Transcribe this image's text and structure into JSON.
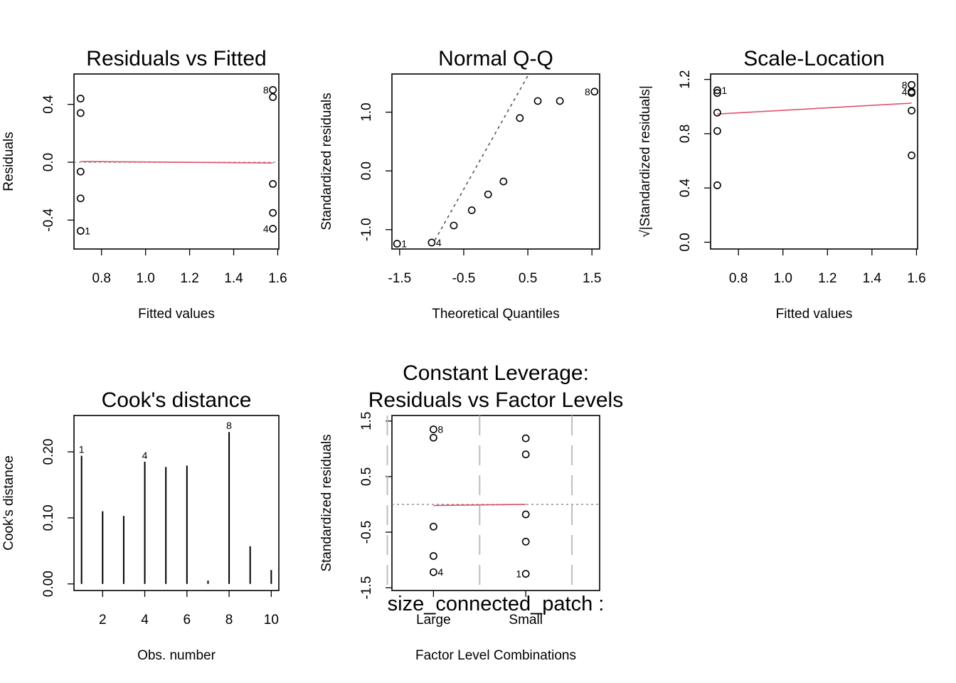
{
  "colors": {
    "fit_line": "#DF536B",
    "reference": "#888888",
    "grid": "#bebebe"
  },
  "chart_data": [
    {
      "id": "p1",
      "type": "scatter",
      "title": [
        "Residuals vs Fitted"
      ],
      "xlabel": "Fitted values",
      "ylabel": "Residuals",
      "xlim": [
        0.675,
        1.605
      ],
      "ylim": [
        -0.6,
        0.61
      ],
      "xticks": [
        0.8,
        1.0,
        1.2,
        1.4,
        1.6
      ],
      "xtick_labels": [
        "0.8",
        "1.0",
        "1.2",
        "1.4",
        "1.6"
      ],
      "yticks": [
        -0.4,
        0.0,
        0.4
      ],
      "ytick_labels": [
        "-0.4",
        "0.0",
        "0.4"
      ],
      "points": [
        {
          "x": 0.705,
          "y": 0.44
        },
        {
          "x": 0.705,
          "y": 0.34
        },
        {
          "x": 0.705,
          "y": -0.065
        },
        {
          "x": 0.705,
          "y": -0.25
        },
        {
          "x": 0.705,
          "y": -0.475,
          "label": "1",
          "label_side": "right"
        },
        {
          "x": 1.578,
          "y": 0.5,
          "label": "8",
          "label_side": "left"
        },
        {
          "x": 1.578,
          "y": 0.45
        },
        {
          "x": 1.578,
          "y": -0.15
        },
        {
          "x": 1.578,
          "y": -0.35
        },
        {
          "x": 1.578,
          "y": -0.46,
          "label": "4",
          "label_side": "left"
        }
      ],
      "hline": {
        "y": 0.0,
        "style": "dotted"
      },
      "fit_line": [
        [
          0.705,
          0.005
        ],
        [
          1.578,
          -0.005
        ]
      ]
    },
    {
      "id": "p2",
      "type": "scatter",
      "title": [
        "Normal Q-Q"
      ],
      "xlabel": "Theoretical Quantiles",
      "ylabel": "Standardized residuals",
      "xlim": [
        -1.62,
        1.62
      ],
      "ylim": [
        -1.33,
        1.65
      ],
      "xticks": [
        -1.5,
        -0.5,
        0.5,
        1.5
      ],
      "xtick_labels": [
        "-1.5",
        "-0.5",
        "0.5",
        "1.5"
      ],
      "yticks": [
        -1.0,
        0.0,
        1.0
      ],
      "ytick_labels": [
        "-1.0",
        "0.0",
        "1.0"
      ],
      "points": [
        {
          "x": -1.54,
          "y": -1.24,
          "label": "1",
          "label_side": "right"
        },
        {
          "x": -1.0,
          "y": -1.22,
          "label": "4",
          "label_side": "right"
        },
        {
          "x": -0.655,
          "y": -0.93
        },
        {
          "x": -0.375,
          "y": -0.67
        },
        {
          "x": -0.12,
          "y": -0.4
        },
        {
          "x": 0.12,
          "y": -0.18
        },
        {
          "x": 0.375,
          "y": 0.9
        },
        {
          "x": 0.655,
          "y": 1.19
        },
        {
          "x": 1.0,
          "y": 1.19
        },
        {
          "x": 1.54,
          "y": 1.35,
          "label": "8",
          "label_side": "left"
        }
      ],
      "ref_line": [
        [
          -0.95,
          -1.18
        ],
        [
          0.5,
          1.62
        ]
      ]
    },
    {
      "id": "p3",
      "type": "scatter",
      "title": [
        "Scale-Location"
      ],
      "xlabel": "Fitted values",
      "ylabel": "√|Standardized residuals|",
      "xlim": [
        0.675,
        1.605
      ],
      "ylim": [
        -0.05,
        1.24
      ],
      "xticks": [
        0.8,
        1.0,
        1.2,
        1.4,
        1.6
      ],
      "xtick_labels": [
        "0.8",
        "1.0",
        "1.2",
        "1.4",
        "1.6"
      ],
      "yticks": [
        0.0,
        0.4,
        0.8,
        1.2
      ],
      "ytick_labels": [
        "0.0",
        "0.4",
        "0.8",
        "1.2"
      ],
      "points": [
        {
          "x": 0.705,
          "y": 1.12,
          "label": "1",
          "label_side": "right"
        },
        {
          "x": 0.705,
          "y": 1.1
        },
        {
          "x": 0.705,
          "y": 0.955
        },
        {
          "x": 0.705,
          "y": 0.82
        },
        {
          "x": 0.705,
          "y": 0.42
        },
        {
          "x": 1.578,
          "y": 1.16,
          "label": "8",
          "label_side": "left"
        },
        {
          "x": 1.578,
          "y": 1.11,
          "label": "4",
          "label_side": "left"
        },
        {
          "x": 1.578,
          "y": 1.1
        },
        {
          "x": 1.578,
          "y": 0.97
        },
        {
          "x": 1.578,
          "y": 0.64
        }
      ],
      "fit_line": [
        [
          0.705,
          0.945
        ],
        [
          1.578,
          1.025
        ]
      ]
    },
    {
      "id": "p4",
      "type": "bar",
      "title": [
        "Cook's distance"
      ],
      "xlabel": "Obs. number",
      "ylabel": "Cook's distance",
      "xlim": [
        0.64,
        10.36
      ],
      "ylim": [
        -0.01,
        0.255
      ],
      "xticks": [
        2,
        4,
        6,
        8,
        10
      ],
      "xtick_labels": [
        "2",
        "4",
        "6",
        "8",
        "10"
      ],
      "yticks": [
        0.0,
        0.1,
        0.2
      ],
      "ytick_labels": [
        "0.00",
        "0.10",
        "0.20"
      ],
      "x": [
        1,
        2,
        3,
        4,
        5,
        6,
        7,
        8,
        9,
        10
      ],
      "values": [
        0.194,
        0.11,
        0.103,
        0.185,
        0.177,
        0.179,
        0.005,
        0.23,
        0.057,
        0.021
      ],
      "labels": {
        "1": "1",
        "4": "4",
        "8": "8"
      }
    },
    {
      "id": "p5",
      "type": "scatter",
      "title": [
        "Constant Leverage:",
        "Residuals vs Factor Levels"
      ],
      "xlabel": "Factor Level Combinations",
      "ylabel": "Standardized residuals",
      "factor_label": "size_connected_patch :",
      "xlim": [
        -0.45,
        1.8
      ],
      "ylim": [
        -1.55,
        1.6
      ],
      "xticks": [
        0,
        1
      ],
      "xtick_labels": [
        "Large",
        "Small"
      ],
      "yticks": [
        -1.5,
        -0.5,
        0.5,
        1.5
      ],
      "ytick_labels": [
        "-1.5",
        "-0.5",
        "0.5",
        "1.5"
      ],
      "vlines": [
        -0.5,
        0.5,
        1.5
      ],
      "points": [
        {
          "x": 0,
          "y": 1.35,
          "label": "8",
          "label_side": "right"
        },
        {
          "x": 0,
          "y": 1.2
        },
        {
          "x": 0,
          "y": -0.4
        },
        {
          "x": 0,
          "y": -0.93
        },
        {
          "x": 0,
          "y": -1.22,
          "label": "4",
          "label_side": "right"
        },
        {
          "x": 1,
          "y": 1.19
        },
        {
          "x": 1,
          "y": 0.9
        },
        {
          "x": 1,
          "y": -0.18
        },
        {
          "x": 1,
          "y": -0.67
        },
        {
          "x": 1,
          "y": -1.25,
          "label": "1",
          "label_side": "left"
        }
      ],
      "hline": {
        "y": 0.0,
        "style": "dotted"
      },
      "fit_line": [
        [
          0,
          -0.02
        ],
        [
          1,
          0.0
        ]
      ]
    }
  ]
}
